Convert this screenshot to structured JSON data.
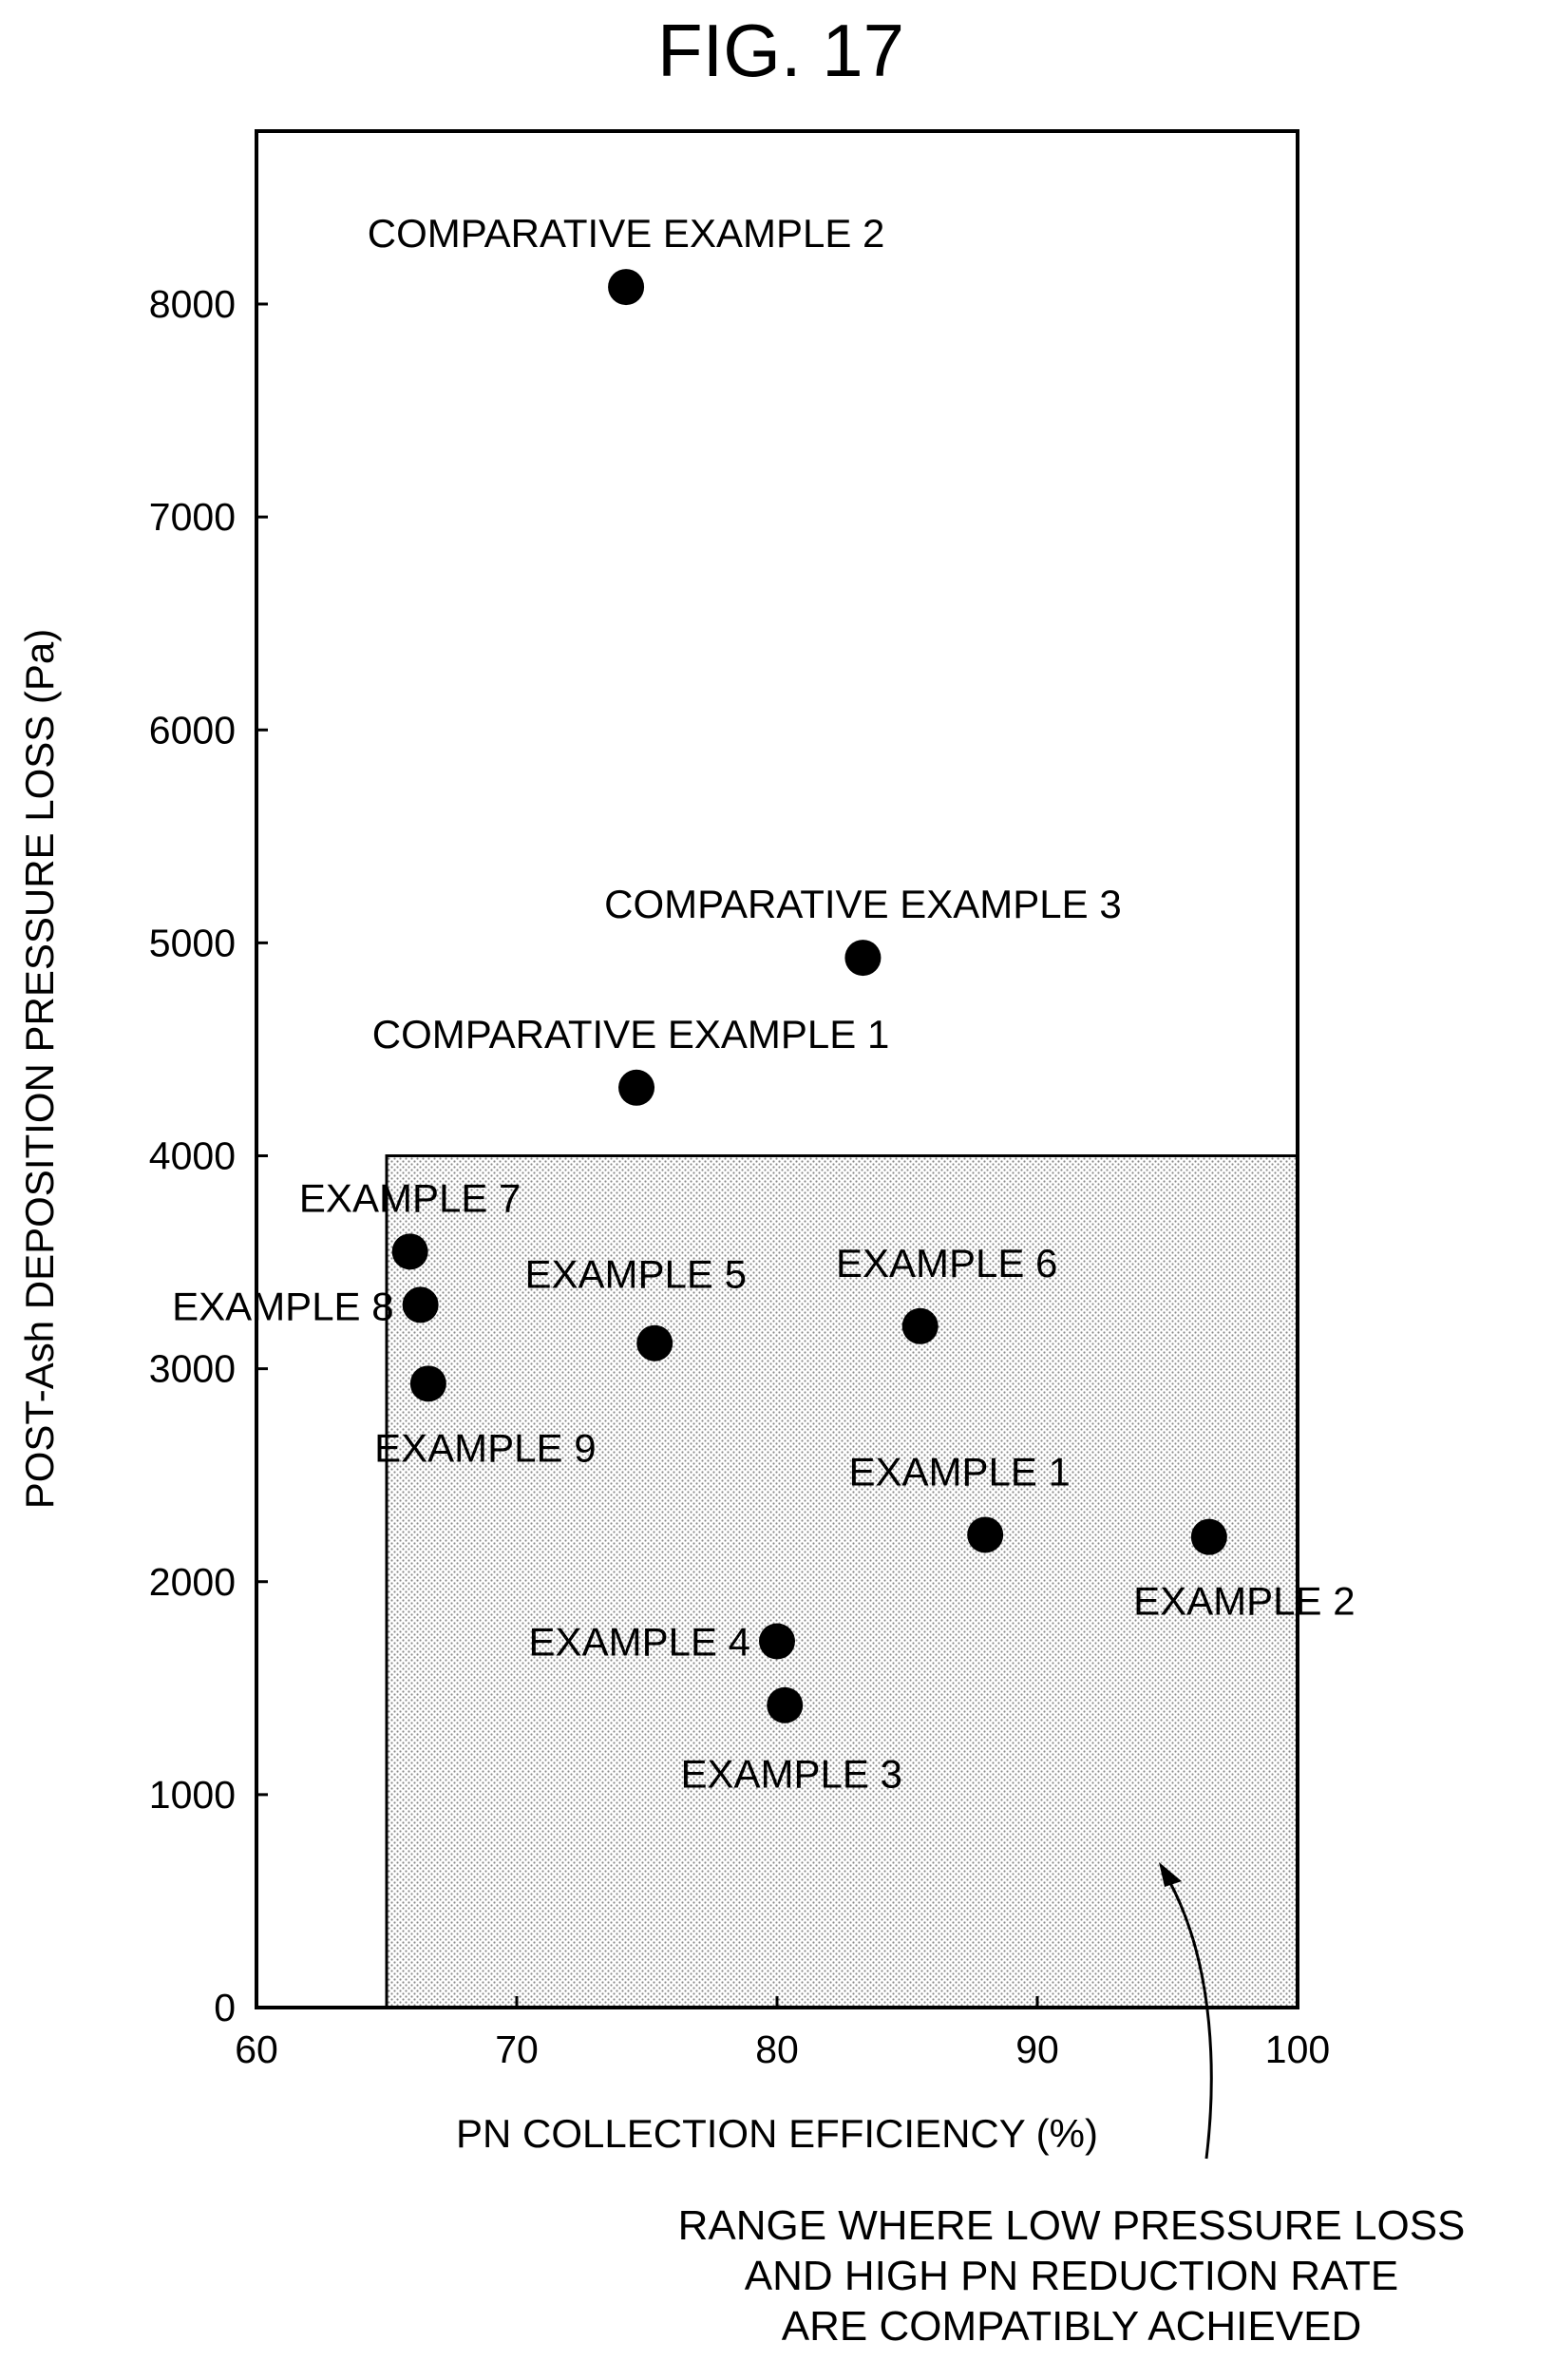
{
  "figure": {
    "title": "FIG. 17"
  },
  "chart_data": {
    "type": "scatter",
    "xlabel": "PN COLLECTION EFFICIENCY (%)",
    "ylabel": "POST-Ash DEPOSITION PRESSURE LOSS (Pa)",
    "xlim": [
      60,
      100
    ],
    "ylim": [
      0,
      8500
    ],
    "xticks": [
      60,
      70,
      80,
      90,
      100
    ],
    "yticks": [
      0,
      1000,
      2000,
      3000,
      4000,
      5000,
      6000,
      7000,
      8000
    ],
    "grid": false,
    "points": [
      {
        "label": "COMPARATIVE EXAMPLE 2",
        "x": 74.2,
        "y": 8080
      },
      {
        "label": "COMPARATIVE EXAMPLE 3",
        "x": 83.3,
        "y": 4930
      },
      {
        "label": "COMPARATIVE EXAMPLE 1",
        "x": 74.6,
        "y": 4320
      },
      {
        "label": "EXAMPLE 7",
        "x": 65.9,
        "y": 3550
      },
      {
        "label": "EXAMPLE 8",
        "x": 66.3,
        "y": 3300
      },
      {
        "label": "EXAMPLE 5",
        "x": 75.3,
        "y": 3120
      },
      {
        "label": "EXAMPLE 6",
        "x": 85.5,
        "y": 3200
      },
      {
        "label": "EXAMPLE 9",
        "x": 66.6,
        "y": 2930
      },
      {
        "label": "EXAMPLE 1",
        "x": 88.0,
        "y": 2220
      },
      {
        "label": "EXAMPLE 2",
        "x": 96.6,
        "y": 2210
      },
      {
        "label": "EXAMPLE 4",
        "x": 80.0,
        "y": 1720
      },
      {
        "label": "EXAMPLE 3",
        "x": 80.3,
        "y": 1420
      }
    ],
    "shaded_region": {
      "x_min": 65,
      "x_max": 100,
      "y_min": 0,
      "y_max": 4000,
      "annotation": [
        "RANGE WHERE LOW PRESSURE LOSS",
        "AND HIGH PN REDUCTION RATE",
        "ARE COMPATIBLY ACHIEVED"
      ]
    }
  }
}
